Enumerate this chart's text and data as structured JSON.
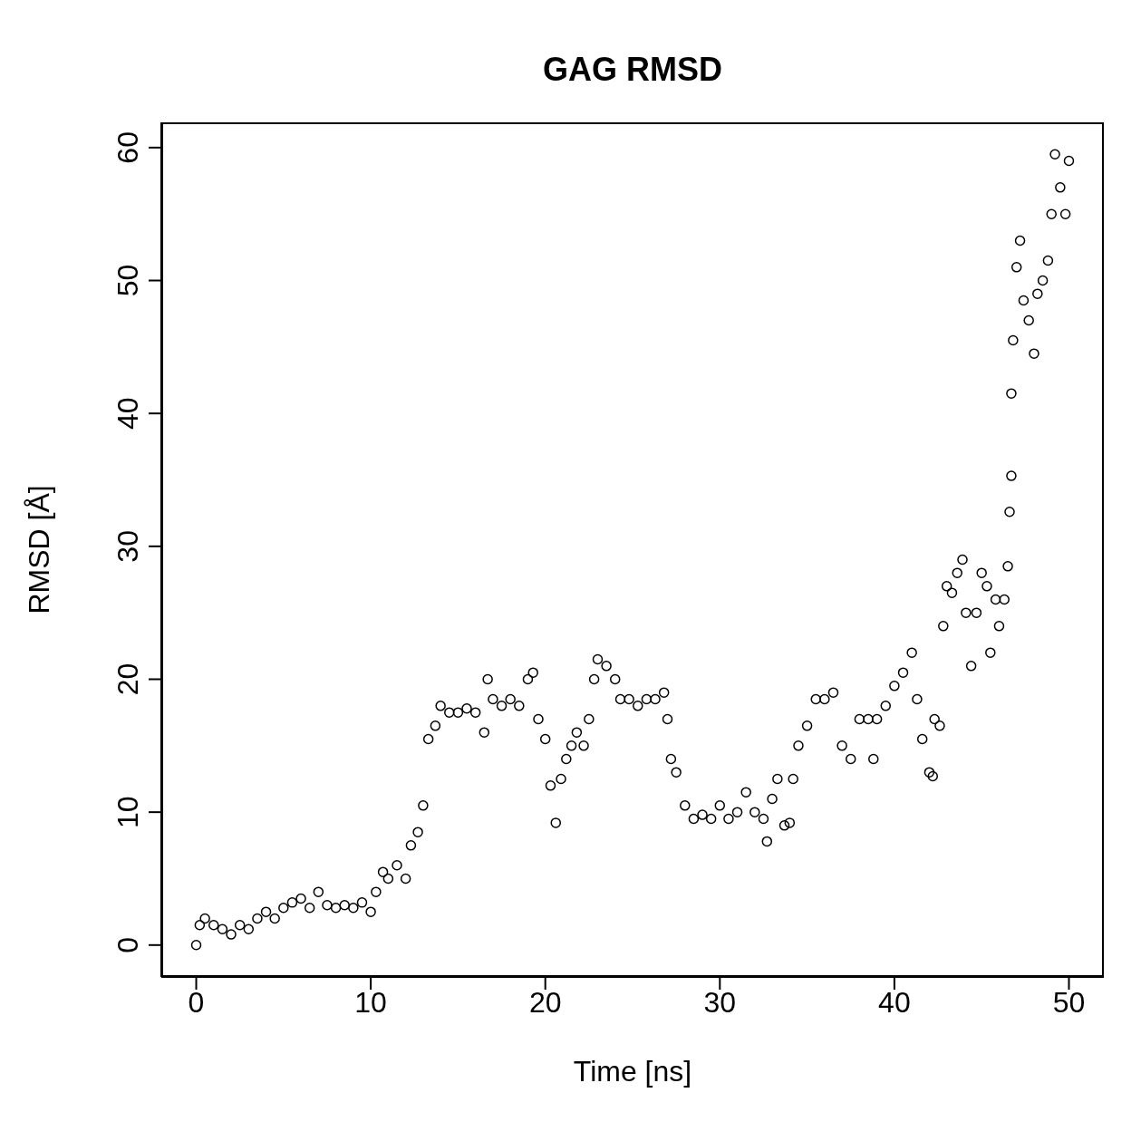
{
  "chart_data": {
    "type": "scatter",
    "title": "GAG RMSD",
    "xlabel": "Time [ns]",
    "ylabel": "RMSD [Å]",
    "xlim": [
      -2,
      52
    ],
    "ylim": [
      -2.4,
      61.9
    ],
    "xticks": [
      0,
      10,
      20,
      30,
      40,
      50
    ],
    "yticks": [
      0,
      10,
      20,
      30,
      40,
      50,
      60
    ],
    "grid": false,
    "marker": "circle",
    "x": [
      0,
      0.2,
      0.5,
      1,
      1.5,
      2,
      2.5,
      3,
      3.5,
      4,
      4.5,
      5,
      5.5,
      6,
      6.5,
      7,
      7.5,
      8,
      8.5,
      9,
      9.5,
      10,
      10.3,
      10.7,
      11,
      11.5,
      12,
      12.3,
      12.7,
      13,
      13.3,
      13.7,
      14,
      14.5,
      15,
      15.5,
      16,
      16.5,
      16.7,
      17,
      17.5,
      18,
      18.5,
      19,
      19.3,
      19.6,
      20,
      20.3,
      20.6,
      20.9,
      21.2,
      21.5,
      21.8,
      22.2,
      22.5,
      22.8,
      23,
      23.5,
      24,
      24.3,
      24.8,
      25.3,
      25.8,
      26.3,
      26.8,
      27,
      27.2,
      27.5,
      28,
      28.5,
      29,
      29.5,
      30,
      30.5,
      31,
      31.5,
      32,
      32.5,
      32.7,
      33,
      33.3,
      33.7,
      34,
      34.2,
      34.5,
      35,
      35.5,
      36,
      36.5,
      37,
      37.5,
      38,
      38.5,
      38.8,
      39,
      39.5,
      40,
      40.5,
      41,
      41.3,
      41.6,
      42,
      42.2,
      42.3,
      42.6,
      42.8,
      43,
      43.3,
      43.6,
      43.9,
      44.1,
      44.4,
      44.7,
      45,
      45.3,
      45.5,
      45.8,
      46,
      46.3,
      46.5,
      46.6,
      46.7,
      46.7,
      46.8,
      47,
      47.2,
      47.4,
      47.7,
      48,
      48.2,
      48.5,
      48.8,
      49,
      49.2,
      49.5,
      49.8,
      50
    ],
    "values": [
      0,
      1.5,
      2,
      1.5,
      1.2,
      0.8,
      1.5,
      1.2,
      2,
      2.5,
      2,
      2.8,
      3.2,
      3.5,
      2.8,
      4,
      3,
      2.8,
      3,
      2.8,
      3.2,
      2.5,
      4,
      5.5,
      5,
      6,
      5,
      7.5,
      8.5,
      10.5,
      15.5,
      16.5,
      18,
      17.5,
      17.5,
      17.8,
      17.5,
      16,
      20,
      18.5,
      18,
      18.5,
      18,
      20,
      20.5,
      17,
      15.5,
      12,
      9.2,
      12.5,
      14,
      15,
      16,
      15,
      17,
      20,
      21.5,
      21,
      20,
      18.5,
      18.5,
      18,
      18.5,
      18.5,
      19,
      17,
      14,
      13,
      10.5,
      9.5,
      9.8,
      9.5,
      10.5,
      9.5,
      10,
      11.5,
      10,
      9.5,
      7.8,
      11,
      12.5,
      9,
      9.2,
      12.5,
      15,
      16.5,
      18.5,
      18.5,
      19,
      15,
      14,
      17,
      17,
      14,
      17,
      18,
      19.5,
      20.5,
      22,
      18.5,
      15.5,
      13,
      12.7,
      17,
      16.5,
      24,
      27,
      26.5,
      28,
      29,
      25,
      21,
      25,
      28,
      27,
      22,
      26,
      24,
      26,
      28.5,
      32.6,
      35.3,
      41.5,
      45.5,
      51,
      53,
      48.5,
      47,
      44.5,
      49,
      50,
      51.5,
      55,
      59.5,
      57,
      55,
      59
    ]
  }
}
